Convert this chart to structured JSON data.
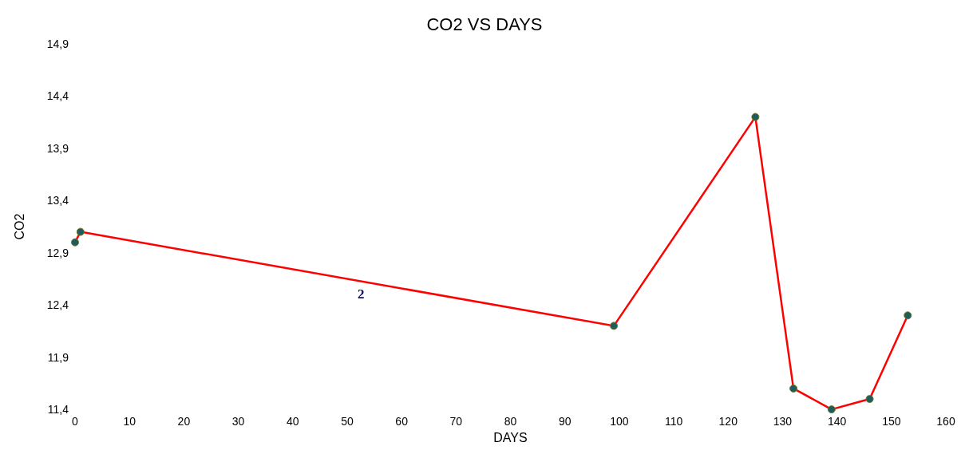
{
  "chart_data": {
    "type": "line",
    "title": "CO2 VS DAYS",
    "xlabel": "DAYS",
    "ylabel": "CO2",
    "x": [
      0,
      1,
      99,
      125,
      132,
      139,
      146,
      153
    ],
    "series": [
      {
        "color": "#ff0000",
        "values": [
          13.0,
          13.1,
          12.2,
          14.2,
          11.6,
          11.4,
          11.5,
          12.3
        ]
      }
    ],
    "xlim": [
      0,
      160
    ],
    "xticks": [
      0,
      10,
      20,
      30,
      40,
      50,
      60,
      70,
      80,
      90,
      100,
      110,
      120,
      130,
      140,
      150,
      160
    ],
    "ylim": [
      11.4,
      14.9
    ],
    "yticks": [
      {
        "value": 11.4,
        "label": "11,4"
      },
      {
        "value": 11.9,
        "label": "11,9"
      },
      {
        "value": 12.4,
        "label": "12,4"
      },
      {
        "value": 12.9,
        "label": "12,9"
      },
      {
        "value": 13.4,
        "label": "13,4"
      },
      {
        "value": 13.9,
        "label": "13,9"
      },
      {
        "value": 14.4,
        "label": "14,4"
      },
      {
        "value": 14.9,
        "label": "14,9"
      }
    ],
    "annotations": [
      "2"
    ],
    "marker": "circle",
    "line_style": "solid",
    "grid": false
  }
}
